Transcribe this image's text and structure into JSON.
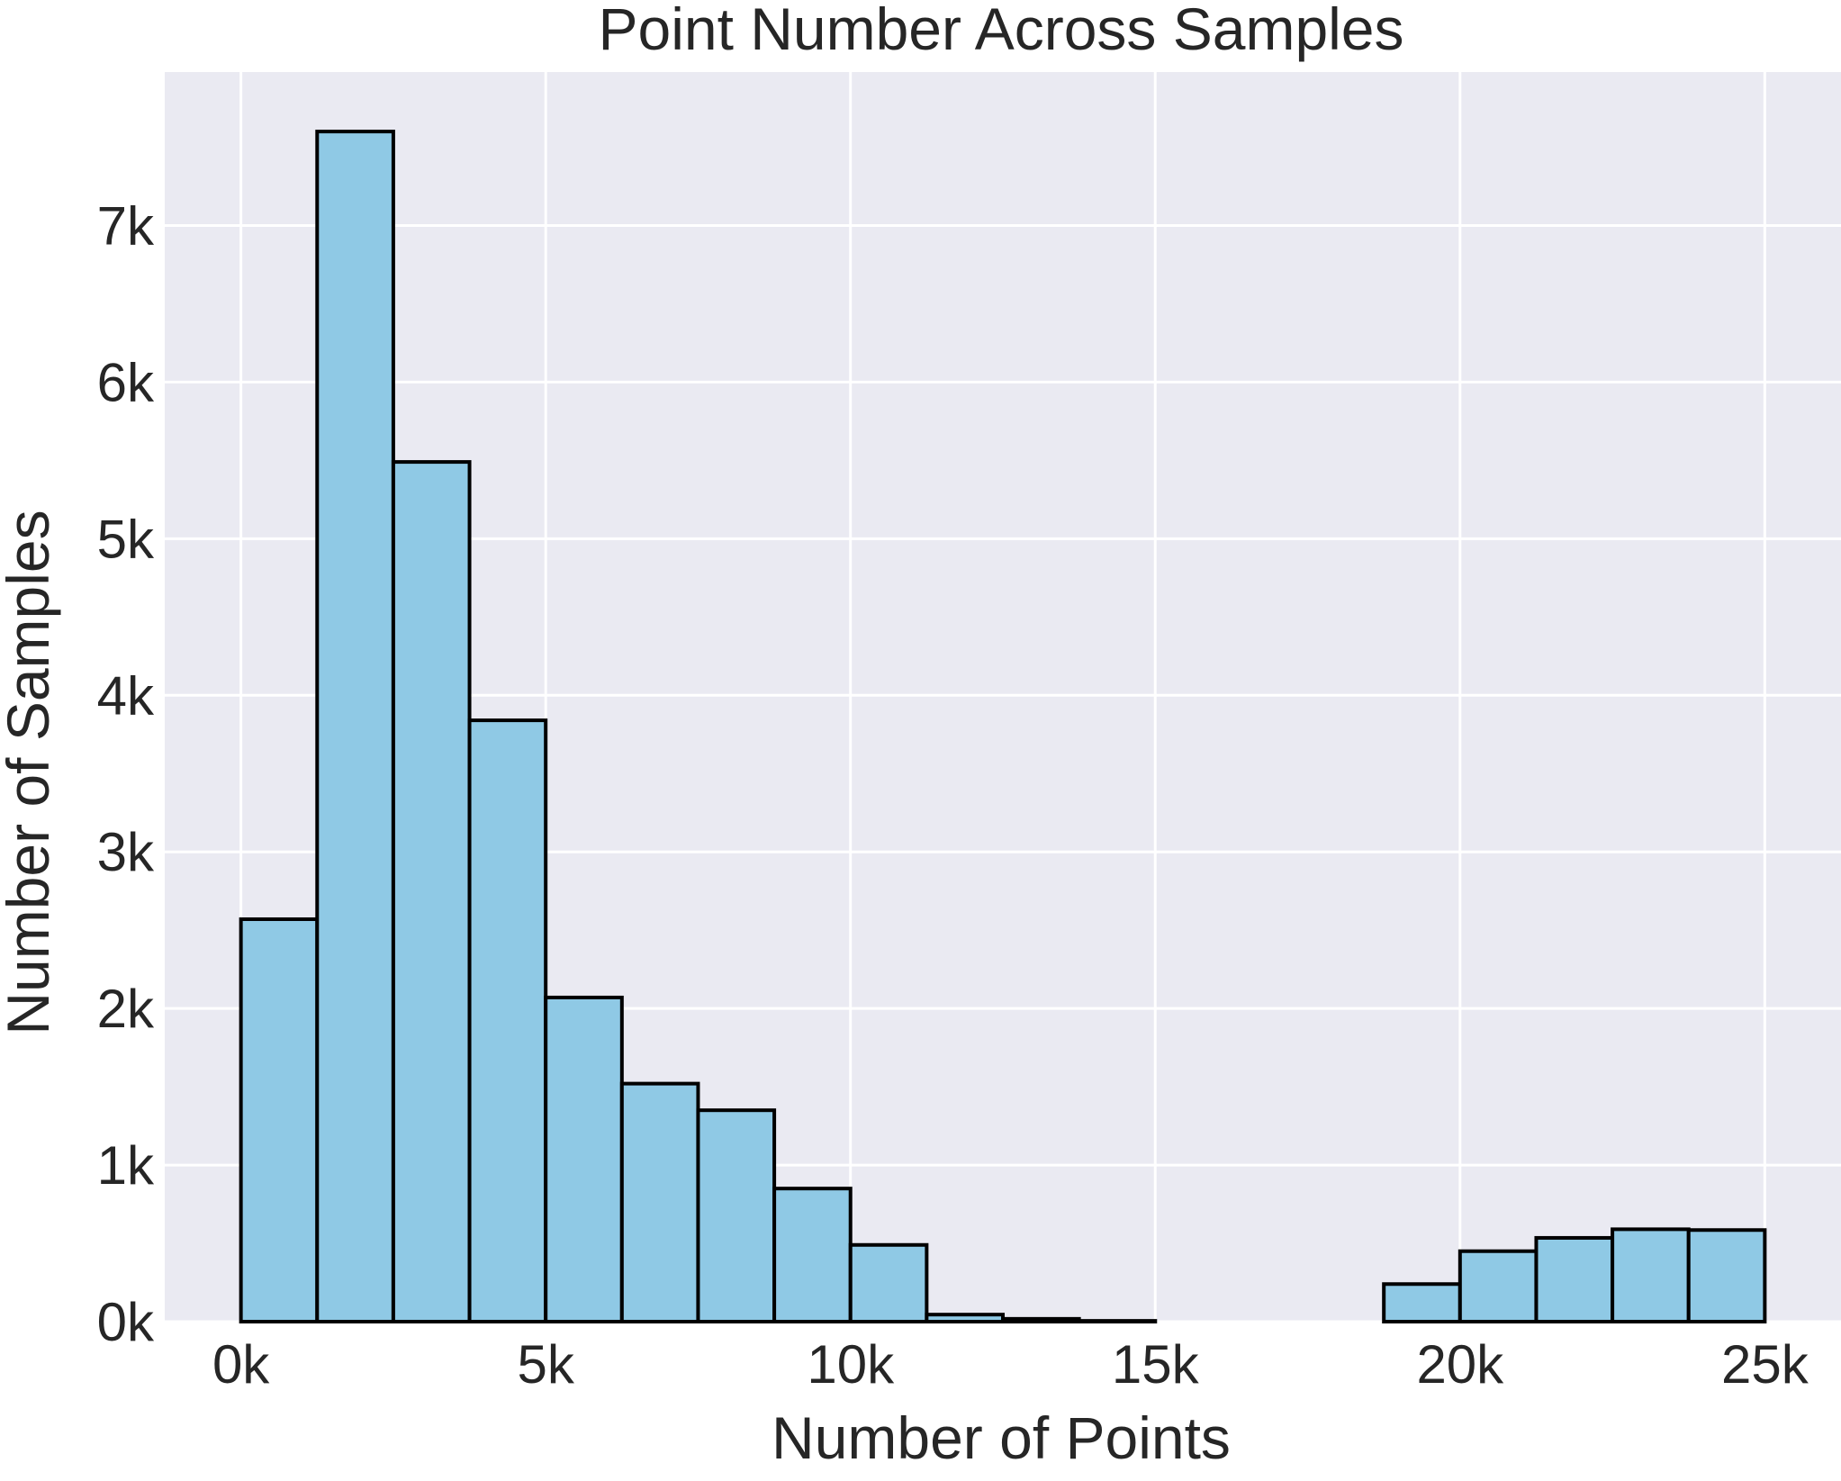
{
  "chart_data": {
    "type": "bar",
    "title": "Point Number Across Samples",
    "xlabel": "Number of Points",
    "ylabel": "Number of Samples",
    "xlim": [
      -1250,
      26250
    ],
    "ylim": [
      0,
      7980
    ],
    "xticks": [
      0,
      5000,
      10000,
      15000,
      20000,
      25000
    ],
    "xtick_labels": [
      "0k",
      "5k",
      "10k",
      "15k",
      "20k",
      "25k"
    ],
    "yticks": [
      0,
      1000,
      2000,
      3000,
      4000,
      5000,
      6000,
      7000
    ],
    "ytick_labels": [
      "0k",
      "1k",
      "2k",
      "3k",
      "4k",
      "5k",
      "6k",
      "7k"
    ],
    "grid": true,
    "bin_edges": [
      0,
      1250,
      2500,
      3750,
      5000,
      6250,
      7500,
      8750,
      10000,
      11250,
      12500,
      13750,
      15000,
      16250,
      17500,
      18750,
      20000,
      21250,
      22500,
      23750,
      25000
    ],
    "values": [
      2570,
      7600,
      5490,
      3840,
      2070,
      1520,
      1350,
      850,
      490,
      45,
      18,
      5,
      0,
      0,
      0,
      240,
      450,
      535,
      590,
      585
    ],
    "colors": {
      "bar_fill": "#8fc9e5",
      "bar_edge": "#000000",
      "plot_background": "#eaeaf2",
      "grid": "#ffffff",
      "text": "#262626"
    }
  }
}
